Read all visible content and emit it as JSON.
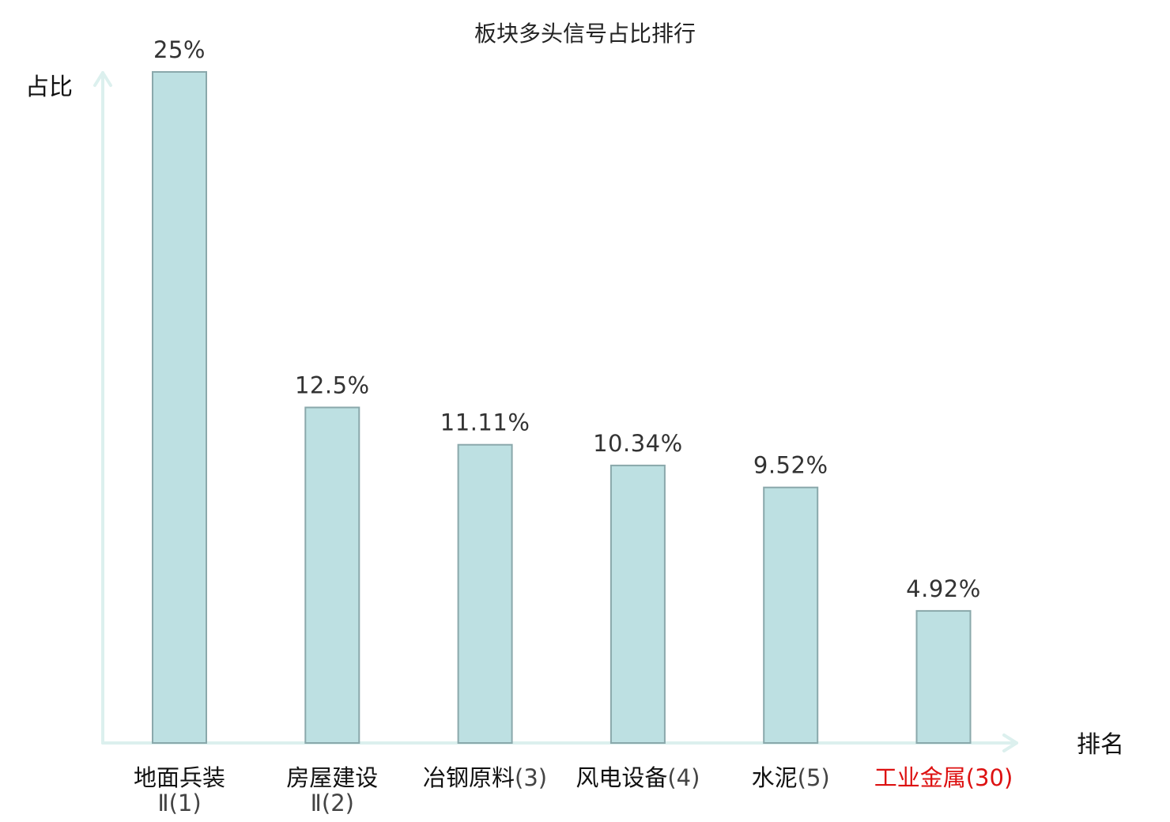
{
  "chart_data": {
    "type": "bar",
    "title": "板块多头信号占比排行",
    "ylabel": "占比",
    "xlabel": "排名",
    "ylim": [
      0,
      25
    ],
    "grid": false,
    "legend": "none",
    "categories": [
      {
        "name": "地面兵装",
        "rank": "Ⅱ(1)",
        "rank_on_new_line": true,
        "highlight": false
      },
      {
        "name": "房屋建设",
        "rank": "Ⅱ(2)",
        "rank_on_new_line": true,
        "highlight": false
      },
      {
        "name": "冶钢原料",
        "rank": "(3)",
        "rank_on_new_line": false,
        "highlight": false
      },
      {
        "name": "风电设备",
        "rank": "(4)",
        "rank_on_new_line": false,
        "highlight": false
      },
      {
        "name": "水泥",
        "rank": "(5)",
        "rank_on_new_line": false,
        "highlight": false
      },
      {
        "name": "工业金属",
        "rank": "(30)",
        "rank_on_new_line": false,
        "highlight": true
      }
    ],
    "values": [
      25,
      12.5,
      11.11,
      10.34,
      9.52,
      4.92
    ],
    "value_labels": [
      "25%",
      "12.5%",
      "11.11%",
      "10.34%",
      "9.52%",
      "4.92%"
    ],
    "colors": {
      "bar_fill": "#bde0e2",
      "bar_stroke": "#8aa8ab",
      "axis": "#dcf0ee",
      "highlight": "#dd1111",
      "text": "#111111"
    }
  }
}
